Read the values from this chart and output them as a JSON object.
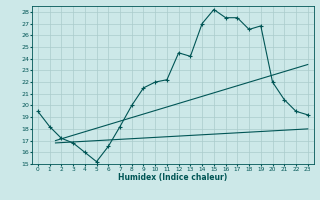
{
  "xlabel": "Humidex (Indice chaleur)",
  "xlim": [
    -0.5,
    23.5
  ],
  "ylim": [
    15,
    28.5
  ],
  "xticks": [
    0,
    1,
    2,
    3,
    4,
    5,
    6,
    7,
    8,
    9,
    10,
    11,
    12,
    13,
    14,
    15,
    16,
    17,
    18,
    19,
    20,
    21,
    22,
    23
  ],
  "yticks": [
    15,
    16,
    17,
    18,
    19,
    20,
    21,
    22,
    23,
    24,
    25,
    26,
    27,
    28
  ],
  "bg_color": "#cce8e8",
  "line_color": "#005555",
  "grid_color": "#aacccc",
  "main_line_x": [
    0,
    1,
    2,
    3,
    4,
    5,
    6,
    7,
    8,
    9,
    10,
    11,
    12,
    13,
    14,
    15,
    16,
    17,
    18,
    19,
    20,
    21,
    22,
    23
  ],
  "main_line_y": [
    19.5,
    18.2,
    17.2,
    16.8,
    16.0,
    15.2,
    16.5,
    18.2,
    20.0,
    21.5,
    22.0,
    22.2,
    24.5,
    24.2,
    27.0,
    28.2,
    27.5,
    27.5,
    26.5,
    26.8,
    22.0,
    20.5,
    19.5,
    19.2
  ],
  "upper_line_x": [
    1.5,
    23
  ],
  "upper_line_y": [
    17.0,
    23.5
  ],
  "lower_line_x": [
    1.5,
    23
  ],
  "lower_line_y": [
    16.8,
    18.0
  ]
}
